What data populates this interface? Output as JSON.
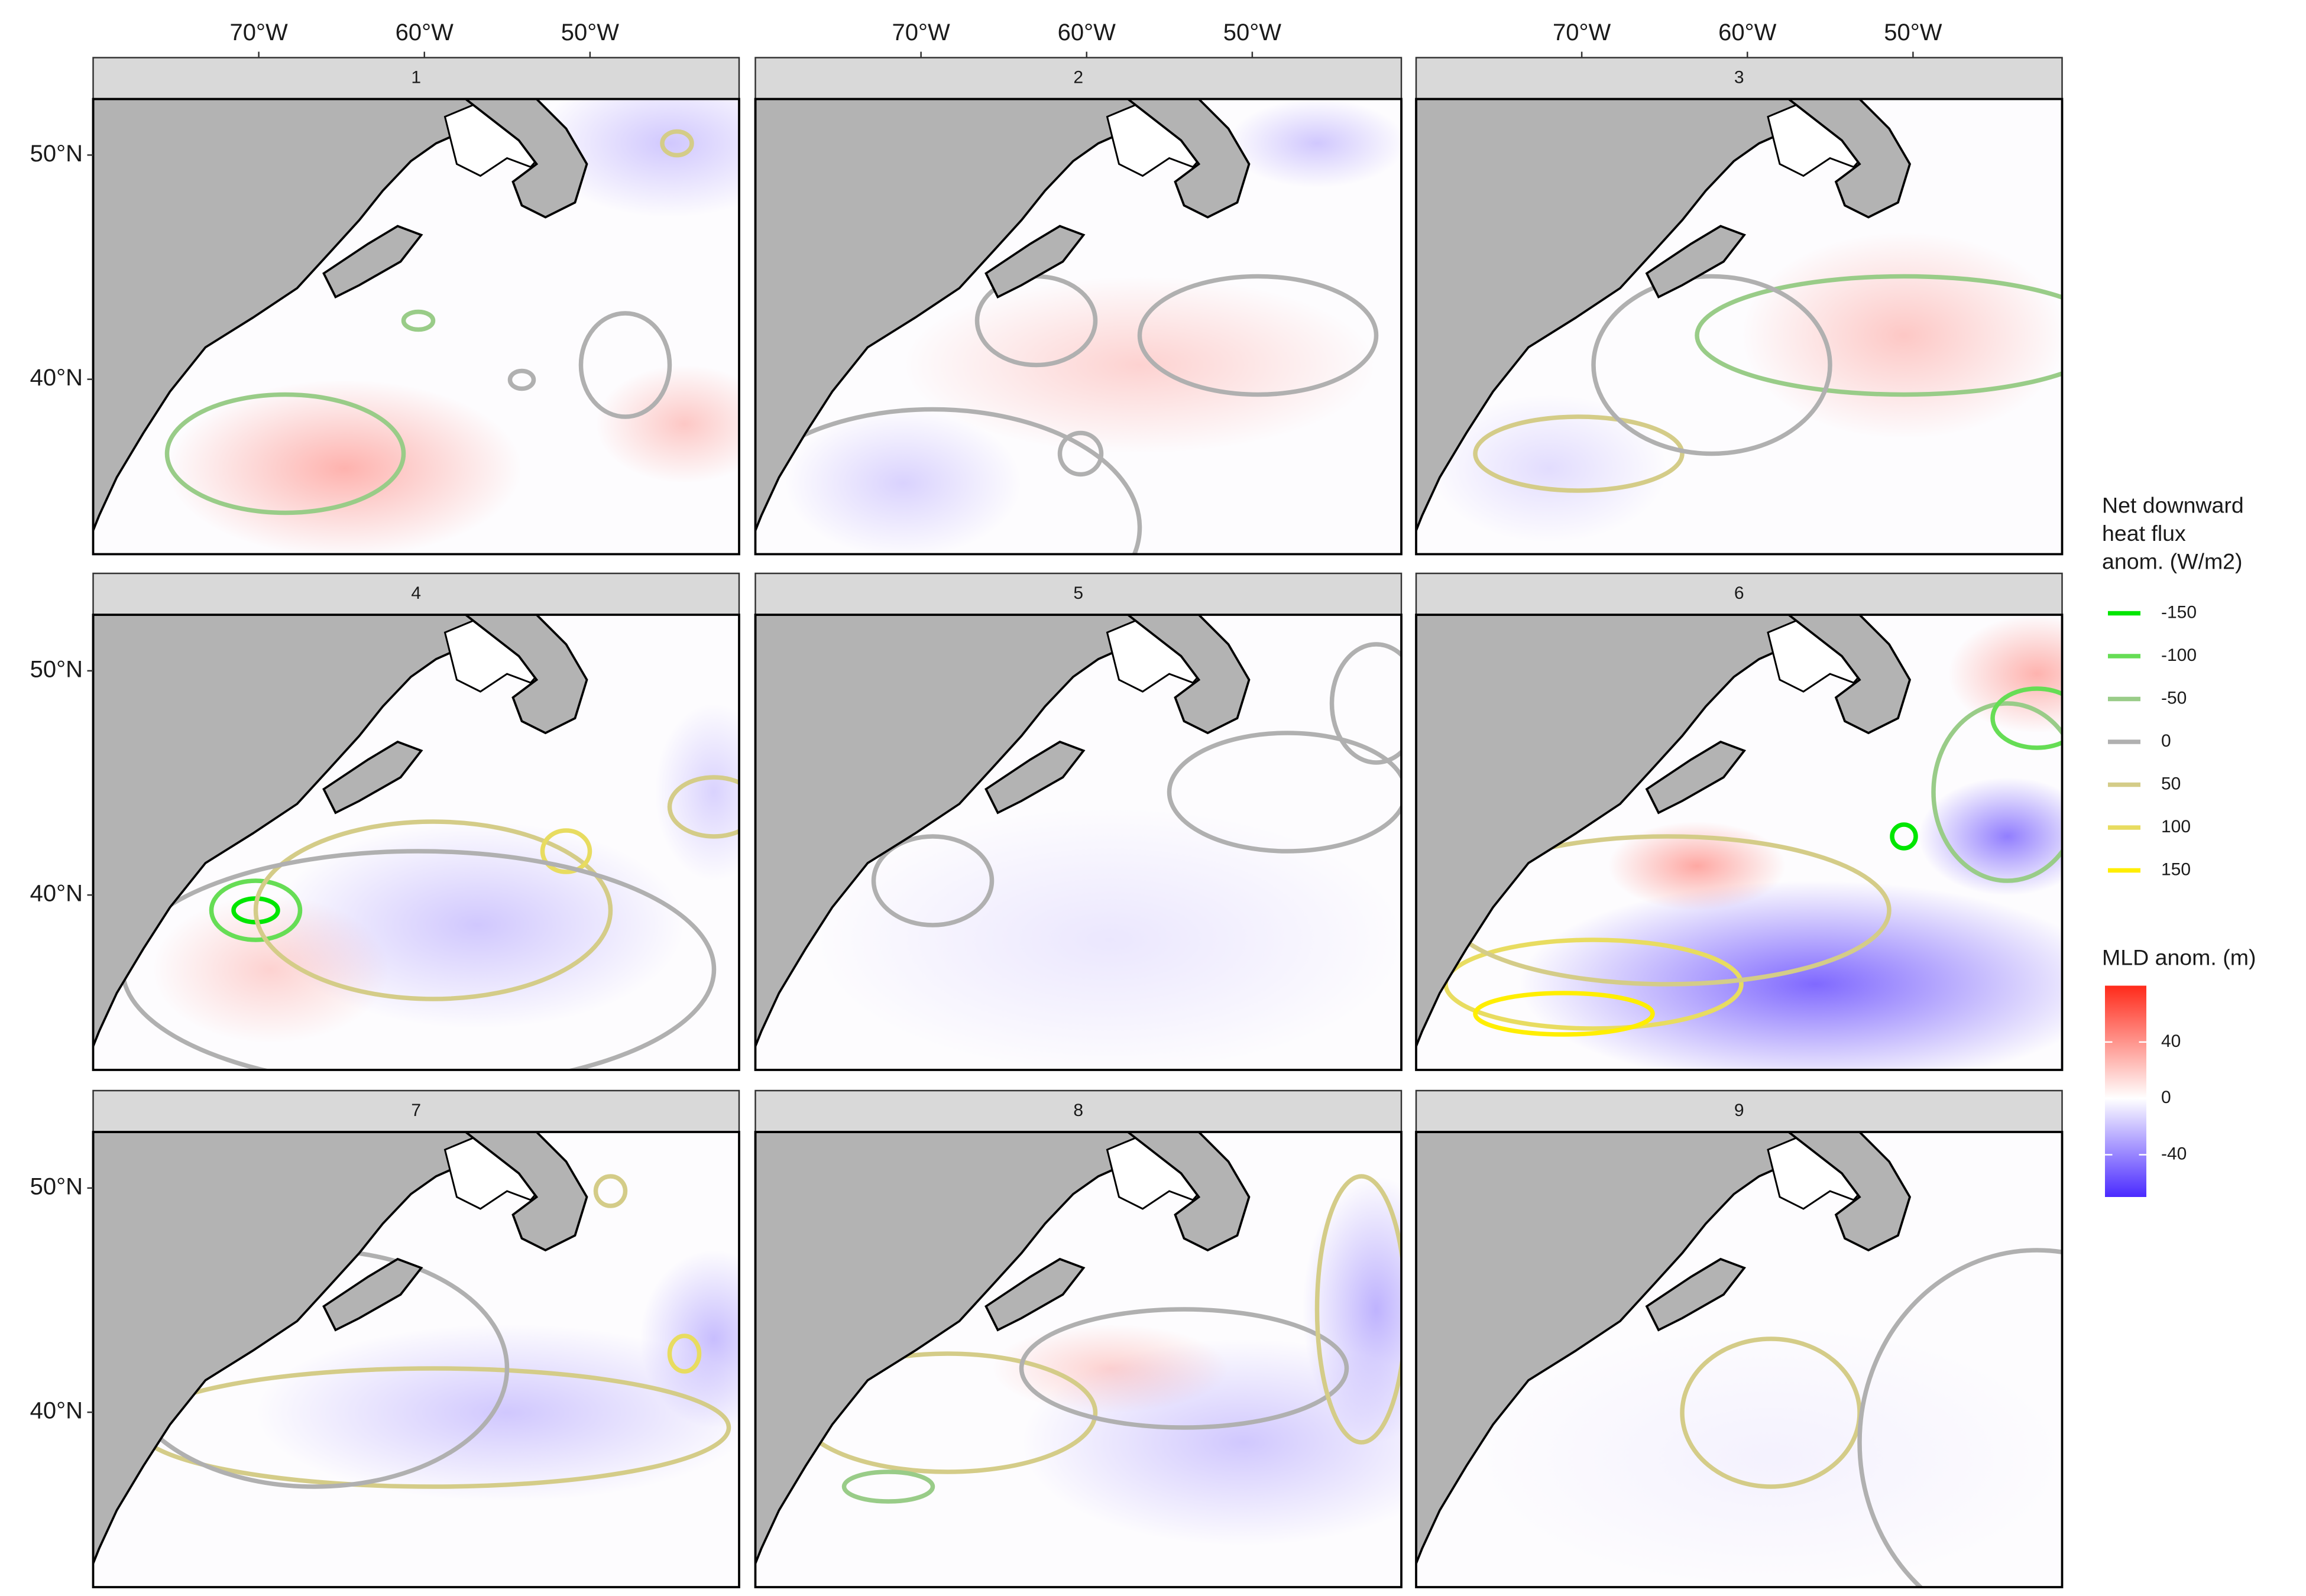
{
  "chart_data": {
    "type": "map",
    "panels": [
      "1",
      "2",
      "3",
      "4",
      "5",
      "6",
      "7",
      "8",
      "9"
    ],
    "xlim": [
      -80,
      -41
    ],
    "ylim": [
      32.2,
      52.5
    ],
    "xticks": [
      {
        "value": -70,
        "label": "70°W"
      },
      {
        "value": -60,
        "label": "60°W"
      },
      {
        "value": -50,
        "label": "50°W"
      }
    ],
    "yticks": [
      {
        "value": 50,
        "label": "50°N"
      },
      {
        "value": 40,
        "label": "40°N"
      }
    ],
    "land_color": "#b3b3b3",
    "flux_legend": {
      "title": [
        "Net downward",
        "heat flux",
        "anom. (W/m2)"
      ],
      "levels": [
        {
          "value": -150,
          "color": "#00e600"
        },
        {
          "value": -100,
          "color": "#66dd55"
        },
        {
          "value": -50,
          "color": "#99cc88"
        },
        {
          "value": 0,
          "color": "#b0b0b0"
        },
        {
          "value": 50,
          "color": "#d4cc88"
        },
        {
          "value": 100,
          "color": "#e8dc60"
        },
        {
          "value": 150,
          "color": "#ffee00"
        }
      ]
    },
    "mld_legend": {
      "title": "MLD anom. (m)",
      "lim": [
        -70,
        80
      ],
      "ticks": [
        40,
        0,
        -40
      ],
      "colors": {
        "low": "#4a2aff",
        "mid": "#ffffff",
        "high": "#ff2a1a"
      }
    }
  }
}
